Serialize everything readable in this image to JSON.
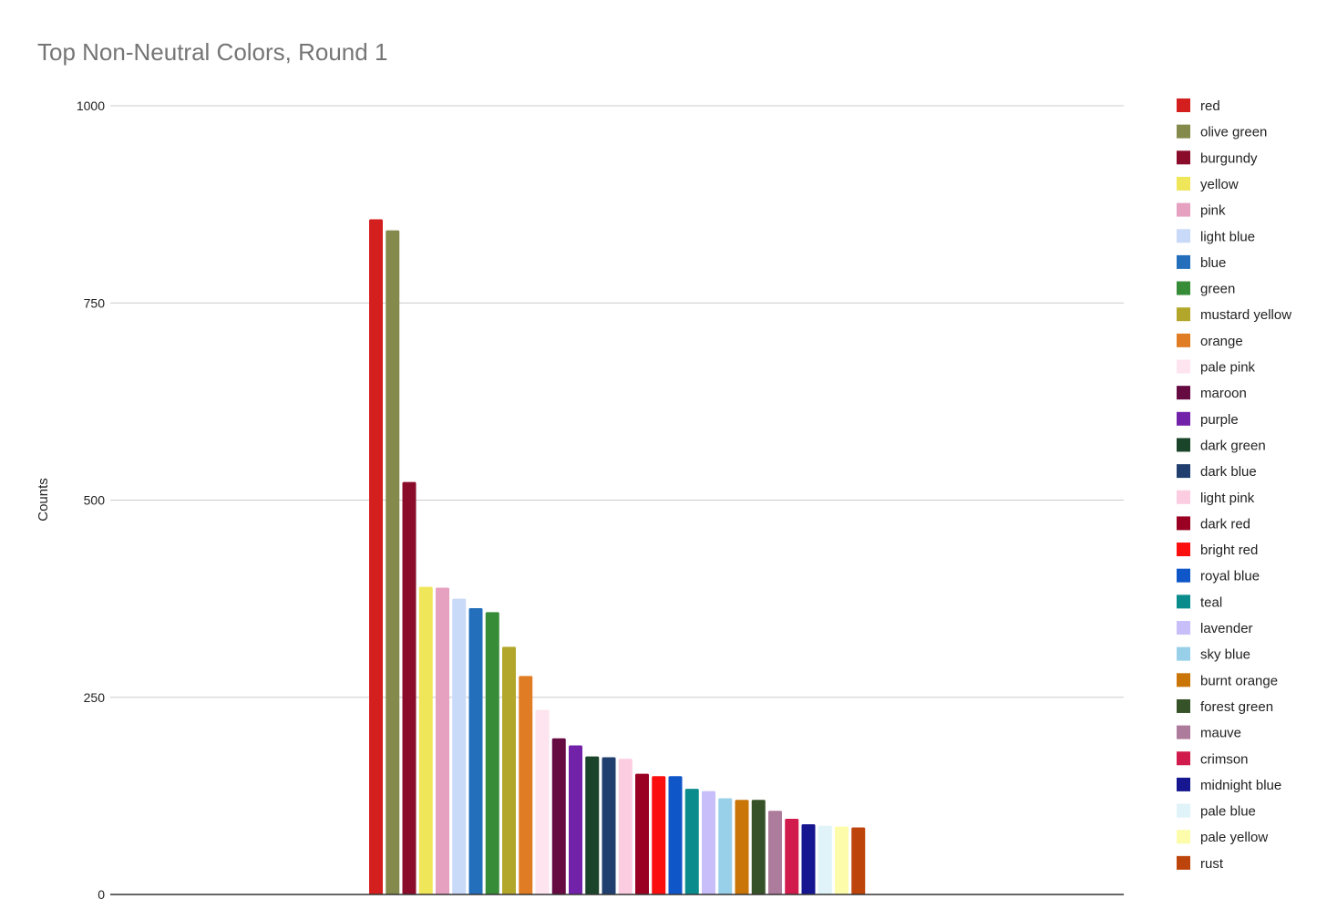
{
  "chart_data": {
    "type": "bar",
    "title": "Top Non-Neutral Colors, Round 1",
    "xlabel": "",
    "ylabel": "Counts",
    "ylim": [
      0,
      1000
    ],
    "yticks": [
      0,
      250,
      500,
      750,
      1000
    ],
    "grid": true,
    "legend_position": "right",
    "series": [
      {
        "name": "red",
        "value": 856,
        "color": "#d41f1f"
      },
      {
        "name": "olive green",
        "value": 842,
        "color": "#848a4c"
      },
      {
        "name": "burgundy",
        "value": 523,
        "color": "#8a0c2a"
      },
      {
        "name": "yellow",
        "value": 390,
        "color": "#f0e65a"
      },
      {
        "name": "pink",
        "value": 389,
        "color": "#e6a1c1"
      },
      {
        "name": "light blue",
        "value": 375,
        "color": "#c9daf8"
      },
      {
        "name": "blue",
        "value": 363,
        "color": "#236fbc"
      },
      {
        "name": "green",
        "value": 358,
        "color": "#378c37"
      },
      {
        "name": "mustard yellow",
        "value": 314,
        "color": "#b3a72b"
      },
      {
        "name": "orange",
        "value": 277,
        "color": "#e07c24"
      },
      {
        "name": "pale pink",
        "value": 234,
        "color": "#fde4ef"
      },
      {
        "name": "maroon",
        "value": 198,
        "color": "#660a42"
      },
      {
        "name": "purple",
        "value": 189,
        "color": "#7222a8"
      },
      {
        "name": "dark green",
        "value": 175,
        "color": "#1b452a"
      },
      {
        "name": "dark blue",
        "value": 174,
        "color": "#213f6e"
      },
      {
        "name": "light pink",
        "value": 172,
        "color": "#fccce0"
      },
      {
        "name": "dark red",
        "value": 153,
        "color": "#990022"
      },
      {
        "name": "bright red",
        "value": 150,
        "color": "#fa0e0e"
      },
      {
        "name": "royal blue",
        "value": 150,
        "color": "#0f56c9"
      },
      {
        "name": "teal",
        "value": 134,
        "color": "#0a8c8c"
      },
      {
        "name": "lavender",
        "value": 131,
        "color": "#c8bffa"
      },
      {
        "name": "sky blue",
        "value": 122,
        "color": "#98d0ea"
      },
      {
        "name": "burnt orange",
        "value": 120,
        "color": "#c97508"
      },
      {
        "name": "forest green",
        "value": 120,
        "color": "#365228"
      },
      {
        "name": "mauve",
        "value": 106,
        "color": "#ad7b9b"
      },
      {
        "name": "crimson",
        "value": 96,
        "color": "#d11b4d"
      },
      {
        "name": "midnight blue",
        "value": 89,
        "color": "#161690"
      },
      {
        "name": "pale blue",
        "value": 87,
        "color": "#dff3f8"
      },
      {
        "name": "pale yellow",
        "value": 86,
        "color": "#fcfcaa"
      },
      {
        "name": "rust",
        "value": 85,
        "color": "#bd440b"
      }
    ]
  }
}
